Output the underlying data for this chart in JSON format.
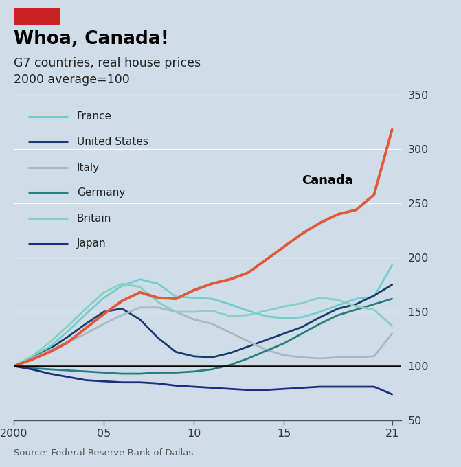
{
  "title": "Whoa, Canada!",
  "subtitle1": "G7 countries, real house prices",
  "subtitle2": "2000 average=100",
  "source": "Source: Federal Reserve Bank of Dallas",
  "background_color": "#cfdde8",
  "red_box_color": "#cc2222",
  "ylim": [
    50,
    360
  ],
  "yticks": [
    50,
    100,
    150,
    200,
    250,
    300,
    350
  ],
  "xlim": [
    2000,
    2021.5
  ],
  "xticks": [
    2000,
    2005,
    2010,
    2015,
    2021
  ],
  "xticklabels": [
    "2000",
    "05",
    "10",
    "15",
    "21"
  ],
  "canada_label": "Canada",
  "legend_entries": [
    "France",
    "United States",
    "Italy",
    "Germany",
    "Britain",
    "Japan"
  ],
  "years": [
    2000,
    2001,
    2002,
    2003,
    2004,
    2005,
    2006,
    2007,
    2008,
    2009,
    2010,
    2011,
    2012,
    2013,
    2014,
    2015,
    2016,
    2017,
    2018,
    2019,
    2020,
    2021
  ],
  "canada": [
    100,
    106,
    113,
    122,
    135,
    148,
    160,
    168,
    163,
    162,
    170,
    176,
    180,
    186,
    198,
    210,
    222,
    232,
    240,
    244,
    258,
    318
  ],
  "france": [
    100,
    108,
    118,
    132,
    148,
    163,
    174,
    180,
    176,
    164,
    163,
    162,
    157,
    151,
    146,
    144,
    145,
    150,
    156,
    162,
    164,
    193
  ],
  "united_states": [
    100,
    107,
    116,
    127,
    139,
    150,
    153,
    143,
    126,
    113,
    109,
    108,
    112,
    118,
    124,
    130,
    136,
    145,
    153,
    157,
    165,
    175
  ],
  "italy": [
    100,
    107,
    115,
    122,
    130,
    139,
    147,
    154,
    154,
    150,
    143,
    139,
    131,
    123,
    115,
    110,
    108,
    107,
    108,
    108,
    109,
    130
  ],
  "germany": [
    100,
    98,
    97,
    96,
    95,
    94,
    93,
    93,
    94,
    94,
    95,
    97,
    101,
    107,
    114,
    121,
    130,
    139,
    147,
    152,
    157,
    162
  ],
  "britain": [
    100,
    109,
    122,
    137,
    153,
    168,
    176,
    173,
    159,
    150,
    150,
    151,
    146,
    147,
    151,
    155,
    158,
    163,
    161,
    155,
    152,
    137
  ],
  "japan": [
    100,
    97,
    93,
    90,
    87,
    86,
    85,
    85,
    84,
    82,
    81,
    80,
    79,
    78,
    78,
    79,
    80,
    81,
    81,
    81,
    81,
    74
  ],
  "colors": {
    "canada": "#e05a3a",
    "france": "#72cece",
    "united_states": "#1b3a6e",
    "italy": "#aab8c2",
    "germany": "#2a7d7d",
    "britain": "#88d0c0",
    "japan": "#1a2f80"
  },
  "linewidths": {
    "canada": 2.8,
    "france": 2.0,
    "united_states": 2.0,
    "italy": 2.0,
    "germany": 2.0,
    "britain": 2.0,
    "japan": 2.0
  }
}
